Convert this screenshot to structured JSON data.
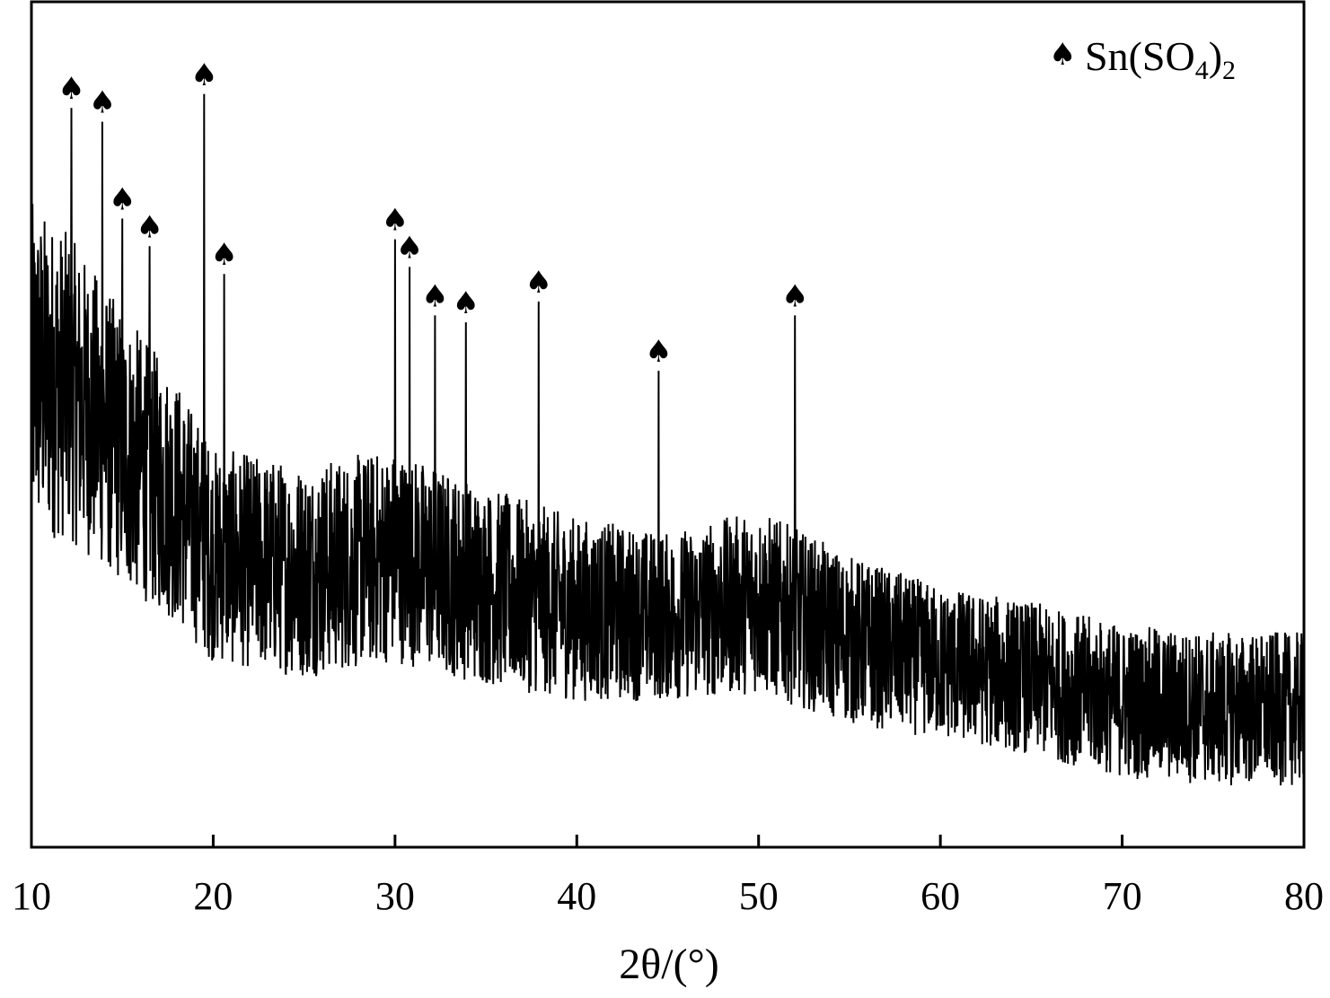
{
  "chart_data": {
    "type": "line",
    "xlabel": "2θ/(°)",
    "xlim": [
      10,
      80
    ],
    "xticks": [
      10,
      20,
      30,
      40,
      50,
      60,
      70,
      80
    ],
    "yticks_shown": false,
    "legend": {
      "symbol": "♠",
      "text": "Sn(SO",
      "subscript_1": "4",
      "suffix": ")",
      "subscript_2": "2",
      "placement": "top-right"
    },
    "series": [
      {
        "color": "#000000",
        "note_markers": "spade",
        "peaks_x": [
          12.2,
          13.9,
          15.0,
          16.5,
          19.5,
          20.6,
          30.0,
          30.8,
          32.2,
          33.9,
          37.9,
          44.5,
          52.0
        ],
        "peaks_y": [
          0.98,
          0.96,
          0.82,
          0.78,
          1.0,
          0.74,
          0.79,
          0.75,
          0.68,
          0.67,
          0.7,
          0.6,
          0.68
        ]
      }
    ],
    "baseline_envelope": {
      "x": [
        10,
        12,
        15,
        18,
        20,
        25,
        30,
        35,
        40,
        45,
        50,
        55,
        60,
        65,
        70,
        75,
        80
      ],
      "center": [
        0.62,
        0.6,
        0.52,
        0.45,
        0.38,
        0.36,
        0.38,
        0.34,
        0.31,
        0.3,
        0.32,
        0.27,
        0.24,
        0.22,
        0.19,
        0.18,
        0.18
      ],
      "amplitude": [
        0.22,
        0.2,
        0.18,
        0.16,
        0.14,
        0.14,
        0.14,
        0.13,
        0.12,
        0.11,
        0.12,
        0.11,
        0.1,
        0.1,
        0.1,
        0.1,
        0.1
      ]
    },
    "ylim": [
      0,
      1.1
    ]
  }
}
